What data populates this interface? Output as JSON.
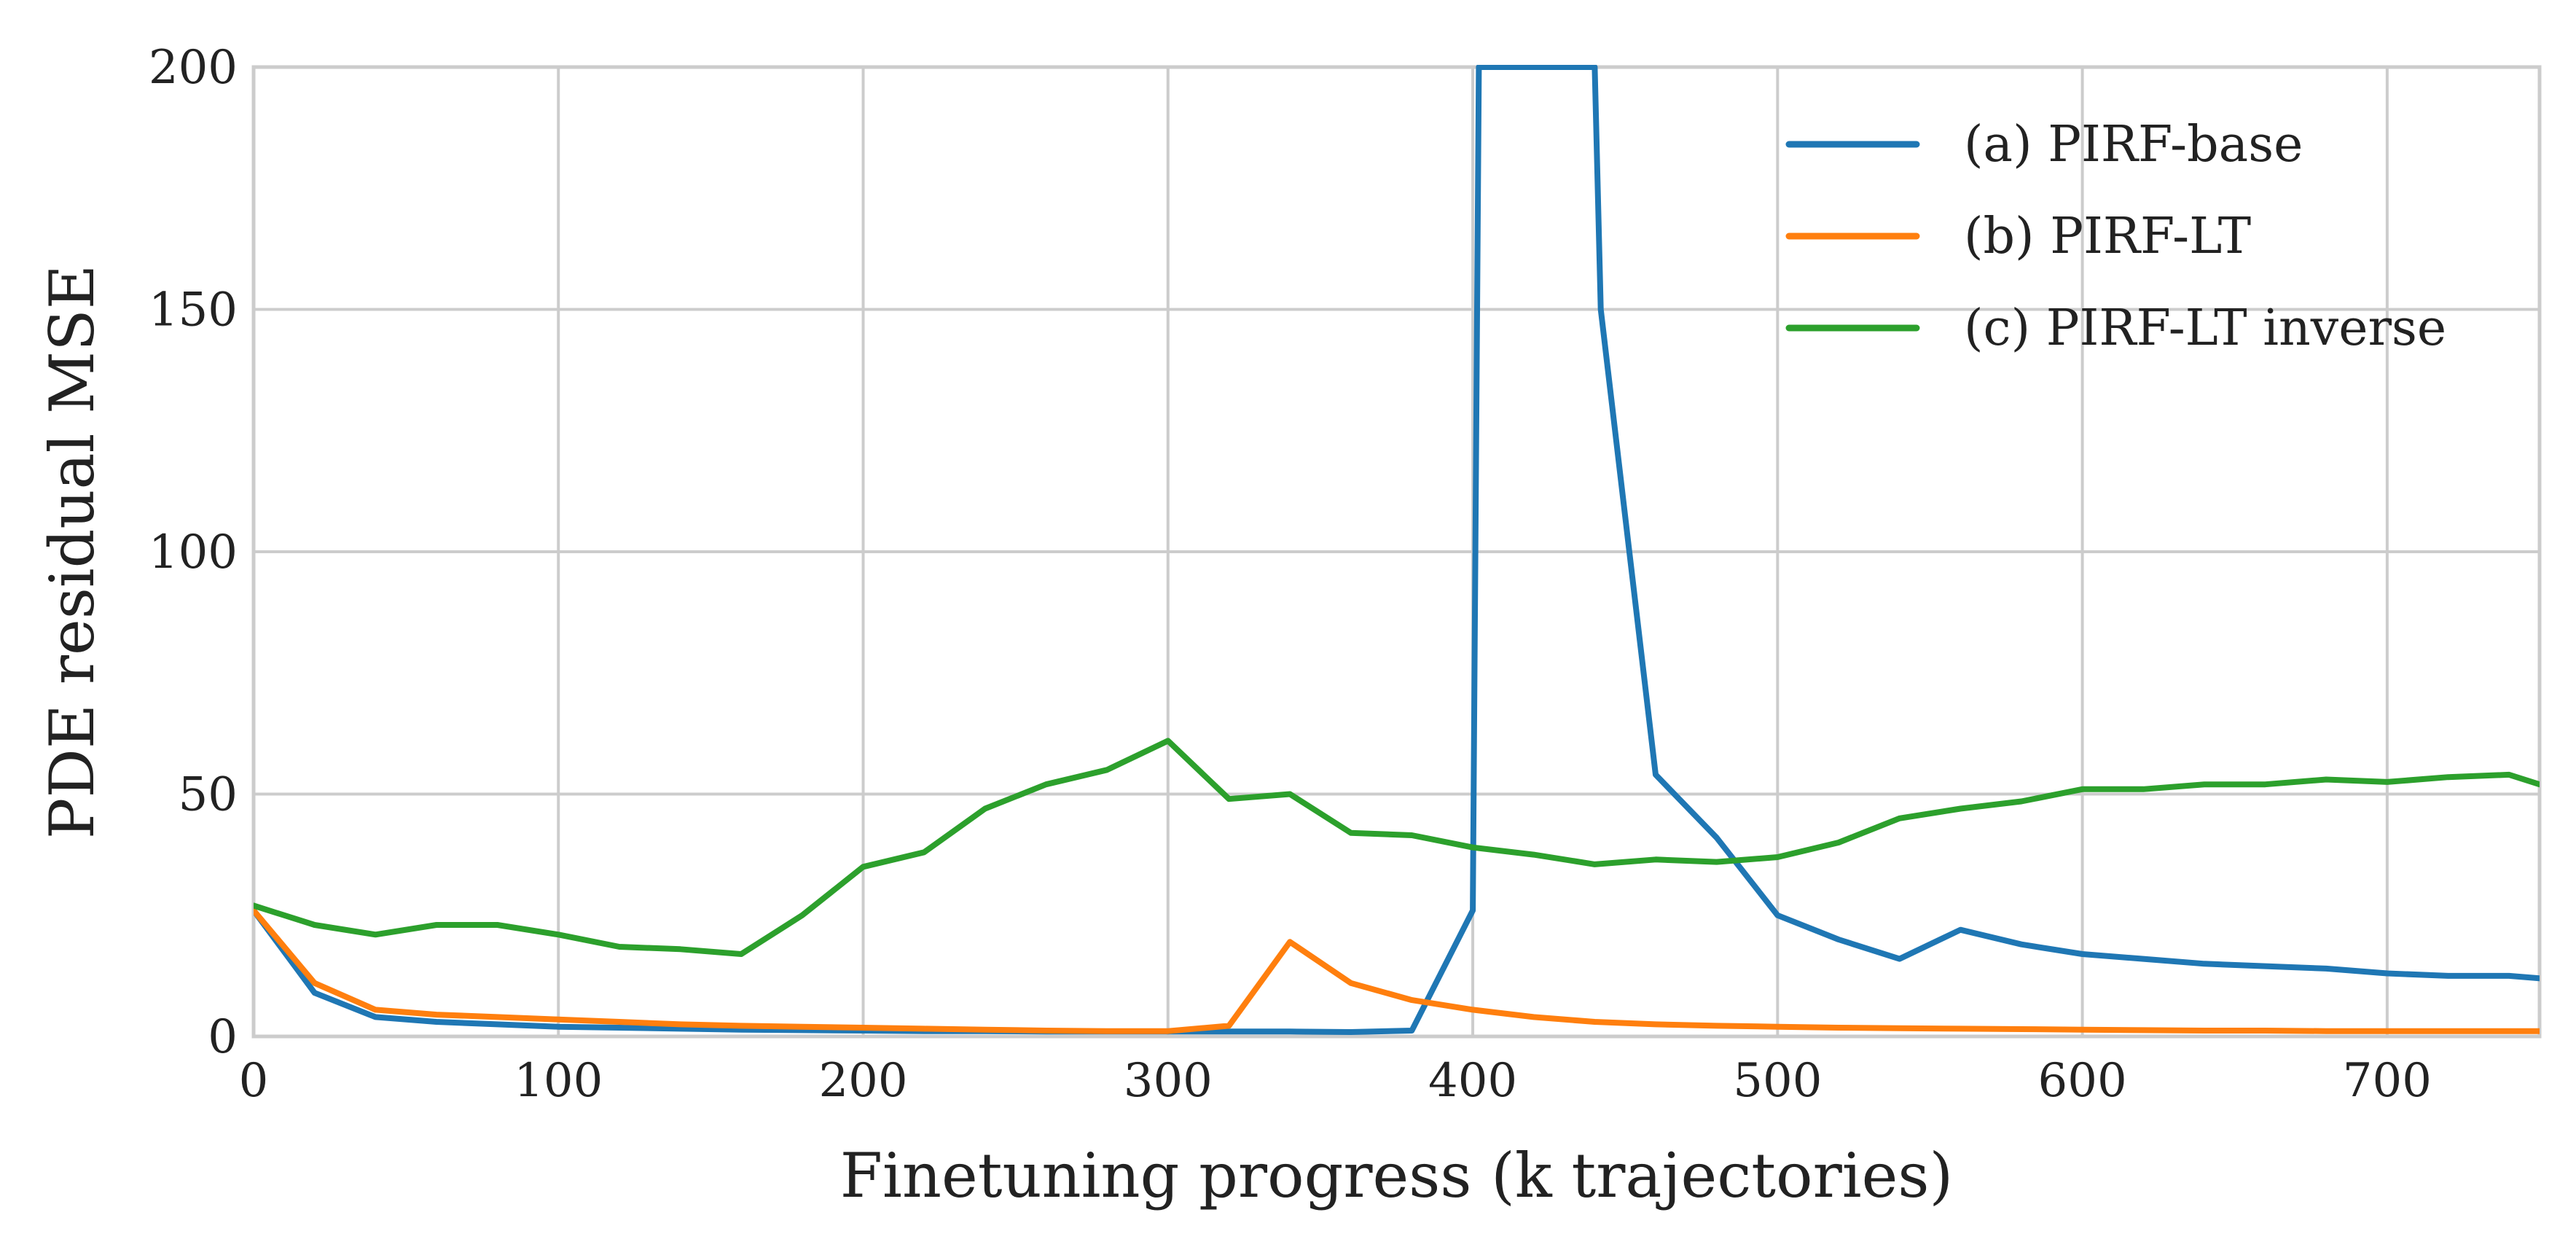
{
  "chart_data": {
    "type": "line",
    "title": "",
    "xlabel": "Finetuning progress (k trajectories)",
    "ylabel": "PDE residual MSE",
    "xlim": [
      0,
      750
    ],
    "ylim": [
      0,
      200
    ],
    "xticks": [
      0,
      100,
      200,
      300,
      400,
      500,
      600,
      700
    ],
    "yticks": [
      0,
      50,
      100,
      150,
      200
    ],
    "grid": true,
    "legend_position": "top-right",
    "series": [
      {
        "name": "(a) PIRF-base",
        "color": "#1f77b4",
        "x": [
          0,
          20,
          40,
          60,
          80,
          100,
          120,
          140,
          160,
          180,
          200,
          220,
          240,
          260,
          280,
          300,
          320,
          340,
          360,
          380,
          400,
          402,
          440,
          442,
          460,
          480,
          500,
          520,
          540,
          560,
          580,
          600,
          620,
          640,
          660,
          680,
          700,
          720,
          740,
          750
        ],
        "y": [
          26,
          9,
          4,
          3,
          2.5,
          2,
          1.8,
          1.6,
          1.4,
          1.3,
          1.2,
          1.1,
          1.1,
          1.0,
          1.0,
          1.0,
          1.0,
          1.0,
          0.9,
          1.2,
          26,
          200,
          200,
          150,
          54,
          41,
          25,
          20,
          16,
          22,
          19,
          17,
          16,
          15,
          14.5,
          14,
          13,
          12.5,
          12.5,
          12
        ]
      },
      {
        "name": "(b) PIRF-LT",
        "color": "#ff7f0e",
        "x": [
          0,
          20,
          40,
          60,
          80,
          100,
          120,
          140,
          160,
          180,
          200,
          220,
          240,
          260,
          280,
          300,
          320,
          340,
          360,
          380,
          400,
          420,
          440,
          460,
          480,
          500,
          520,
          540,
          560,
          580,
          600,
          620,
          640,
          660,
          680,
          700,
          720,
          740,
          750
        ],
        "y": [
          26,
          11,
          5.5,
          4.5,
          4,
          3.5,
          3,
          2.5,
          2.2,
          2,
          1.8,
          1.6,
          1.4,
          1.2,
          1.1,
          1.1,
          2.2,
          19.5,
          11,
          7.5,
          5.5,
          4,
          3,
          2.5,
          2.2,
          2,
          1.8,
          1.7,
          1.6,
          1.5,
          1.4,
          1.3,
          1.2,
          1.2,
          1.1,
          1.1,
          1.1,
          1.1,
          1.1
        ]
      },
      {
        "name": "(c) PIRF-LT inverse",
        "color": "#2ca02c",
        "x": [
          0,
          20,
          40,
          60,
          80,
          100,
          120,
          140,
          160,
          180,
          200,
          220,
          240,
          260,
          280,
          300,
          320,
          340,
          360,
          380,
          400,
          420,
          440,
          460,
          480,
          500,
          520,
          540,
          560,
          580,
          600,
          620,
          640,
          660,
          680,
          700,
          720,
          740,
          750
        ],
        "y": [
          27,
          23,
          21,
          23,
          23,
          21,
          18.5,
          18,
          17,
          25,
          35,
          38,
          47,
          52,
          55,
          61,
          49,
          50,
          42,
          41.5,
          39,
          37.5,
          35.5,
          36.5,
          36,
          37,
          40,
          45,
          47,
          48.5,
          51,
          51,
          52,
          52,
          53,
          52.5,
          53.5,
          54,
          52
        ]
      }
    ]
  }
}
